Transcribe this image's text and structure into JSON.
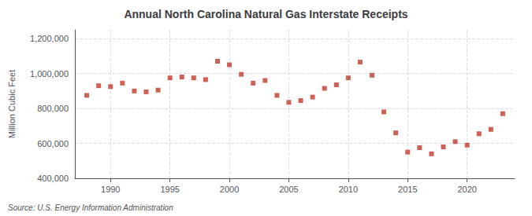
{
  "chart_data": {
    "type": "scatter",
    "title": "Annual North Carolina Natural Gas Interstate Receipts",
    "ylabel": "Million Cubic Feet",
    "source": "Source: U.S. Energy Information Administration",
    "x": [
      1988,
      1989,
      1990,
      1991,
      1992,
      1993,
      1994,
      1995,
      1996,
      1997,
      1998,
      1999,
      2000,
      2001,
      2002,
      2003,
      2004,
      2005,
      2006,
      2007,
      2008,
      2009,
      2010,
      2011,
      2012,
      2013,
      2014,
      2015,
      2016,
      2017,
      2018,
      2019,
      2020,
      2021,
      2022,
      2023
    ],
    "values": [
      875000,
      930000,
      925000,
      945000,
      900000,
      895000,
      905000,
      975000,
      980000,
      975000,
      965000,
      1070000,
      1050000,
      995000,
      945000,
      960000,
      875000,
      835000,
      845000,
      865000,
      915000,
      935000,
      975000,
      1065000,
      990000,
      780000,
      660000,
      550000,
      575000,
      540000,
      580000,
      610000,
      590000,
      655000,
      680000,
      770000
    ],
    "color": "#c0392b",
    "marker": "square",
    "xlim": [
      1987,
      2024
    ],
    "xticks": [
      1990,
      1995,
      2000,
      2005,
      2010,
      2015,
      2020
    ],
    "ylim": [
      400000,
      1250000
    ],
    "yticks": [
      {
        "value": 400000,
        "label": "400,000"
      },
      {
        "value": 600000,
        "label": "600,000"
      },
      {
        "value": 800000,
        "label": "800,000"
      },
      {
        "value": 1000000,
        "label": "1,000,000"
      },
      {
        "value": 1200000,
        "label": "1,200,000"
      }
    ],
    "grid": true
  }
}
